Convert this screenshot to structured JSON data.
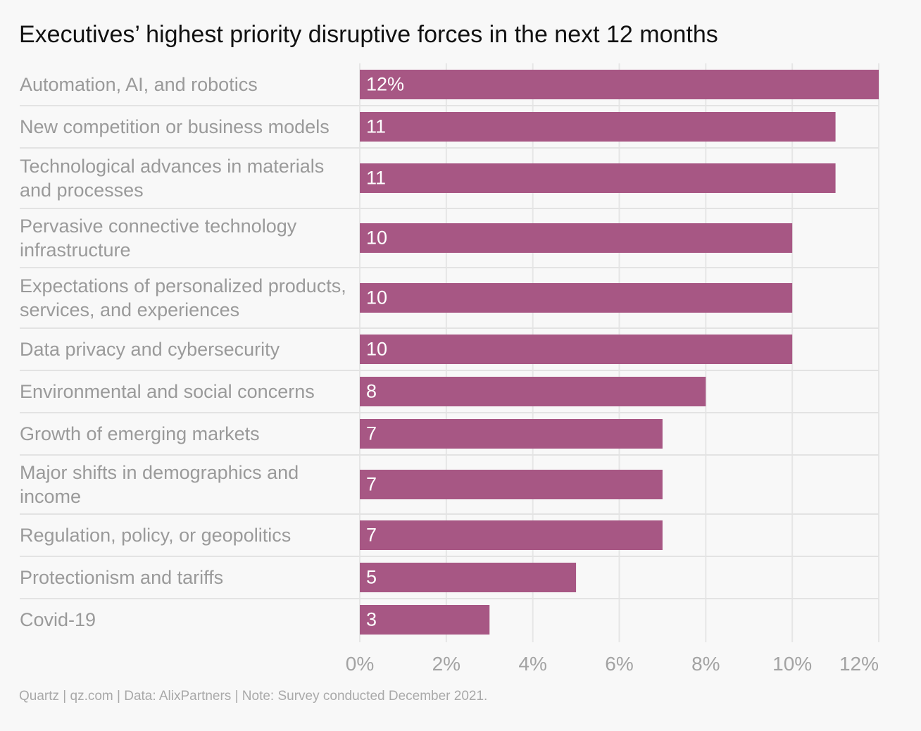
{
  "chart_data": {
    "type": "bar",
    "orientation": "horizontal",
    "title": "Executives’ highest priority disruptive forces in the next 12 months",
    "categories": [
      "Automation, AI, and robotics",
      "New competition or business models",
      "Technological advances in materials and processes",
      "Pervasive connective technology infrastructure",
      "Expectations of personalized products, services, and experiences",
      "Data privacy and cybersecurity",
      "Environmental and social concerns",
      "Growth of emerging markets",
      "Major shifts in demographics and income",
      "Regulation, policy, or geopolitics",
      "Protectionism and tariffs",
      "Covid-19"
    ],
    "values": [
      12,
      11,
      11,
      10,
      10,
      10,
      8,
      7,
      7,
      7,
      5,
      3
    ],
    "value_labels": [
      "12%",
      "11",
      "11",
      "10",
      "10",
      "10",
      "8",
      "7",
      "7",
      "7",
      "5",
      "3"
    ],
    "xlim": [
      0,
      12
    ],
    "x_ticks": [
      0,
      2,
      4,
      6,
      8,
      10,
      12
    ],
    "x_tick_labels": [
      "0%",
      "2%",
      "4%",
      "6%",
      "8%",
      "10%",
      "12%"
    ],
    "grid": true,
    "legend": "none",
    "bar_color": "#a75784"
  },
  "footer": "Quartz | qz.com | Data: AlixPartners | Note: Survey conducted December 2021."
}
